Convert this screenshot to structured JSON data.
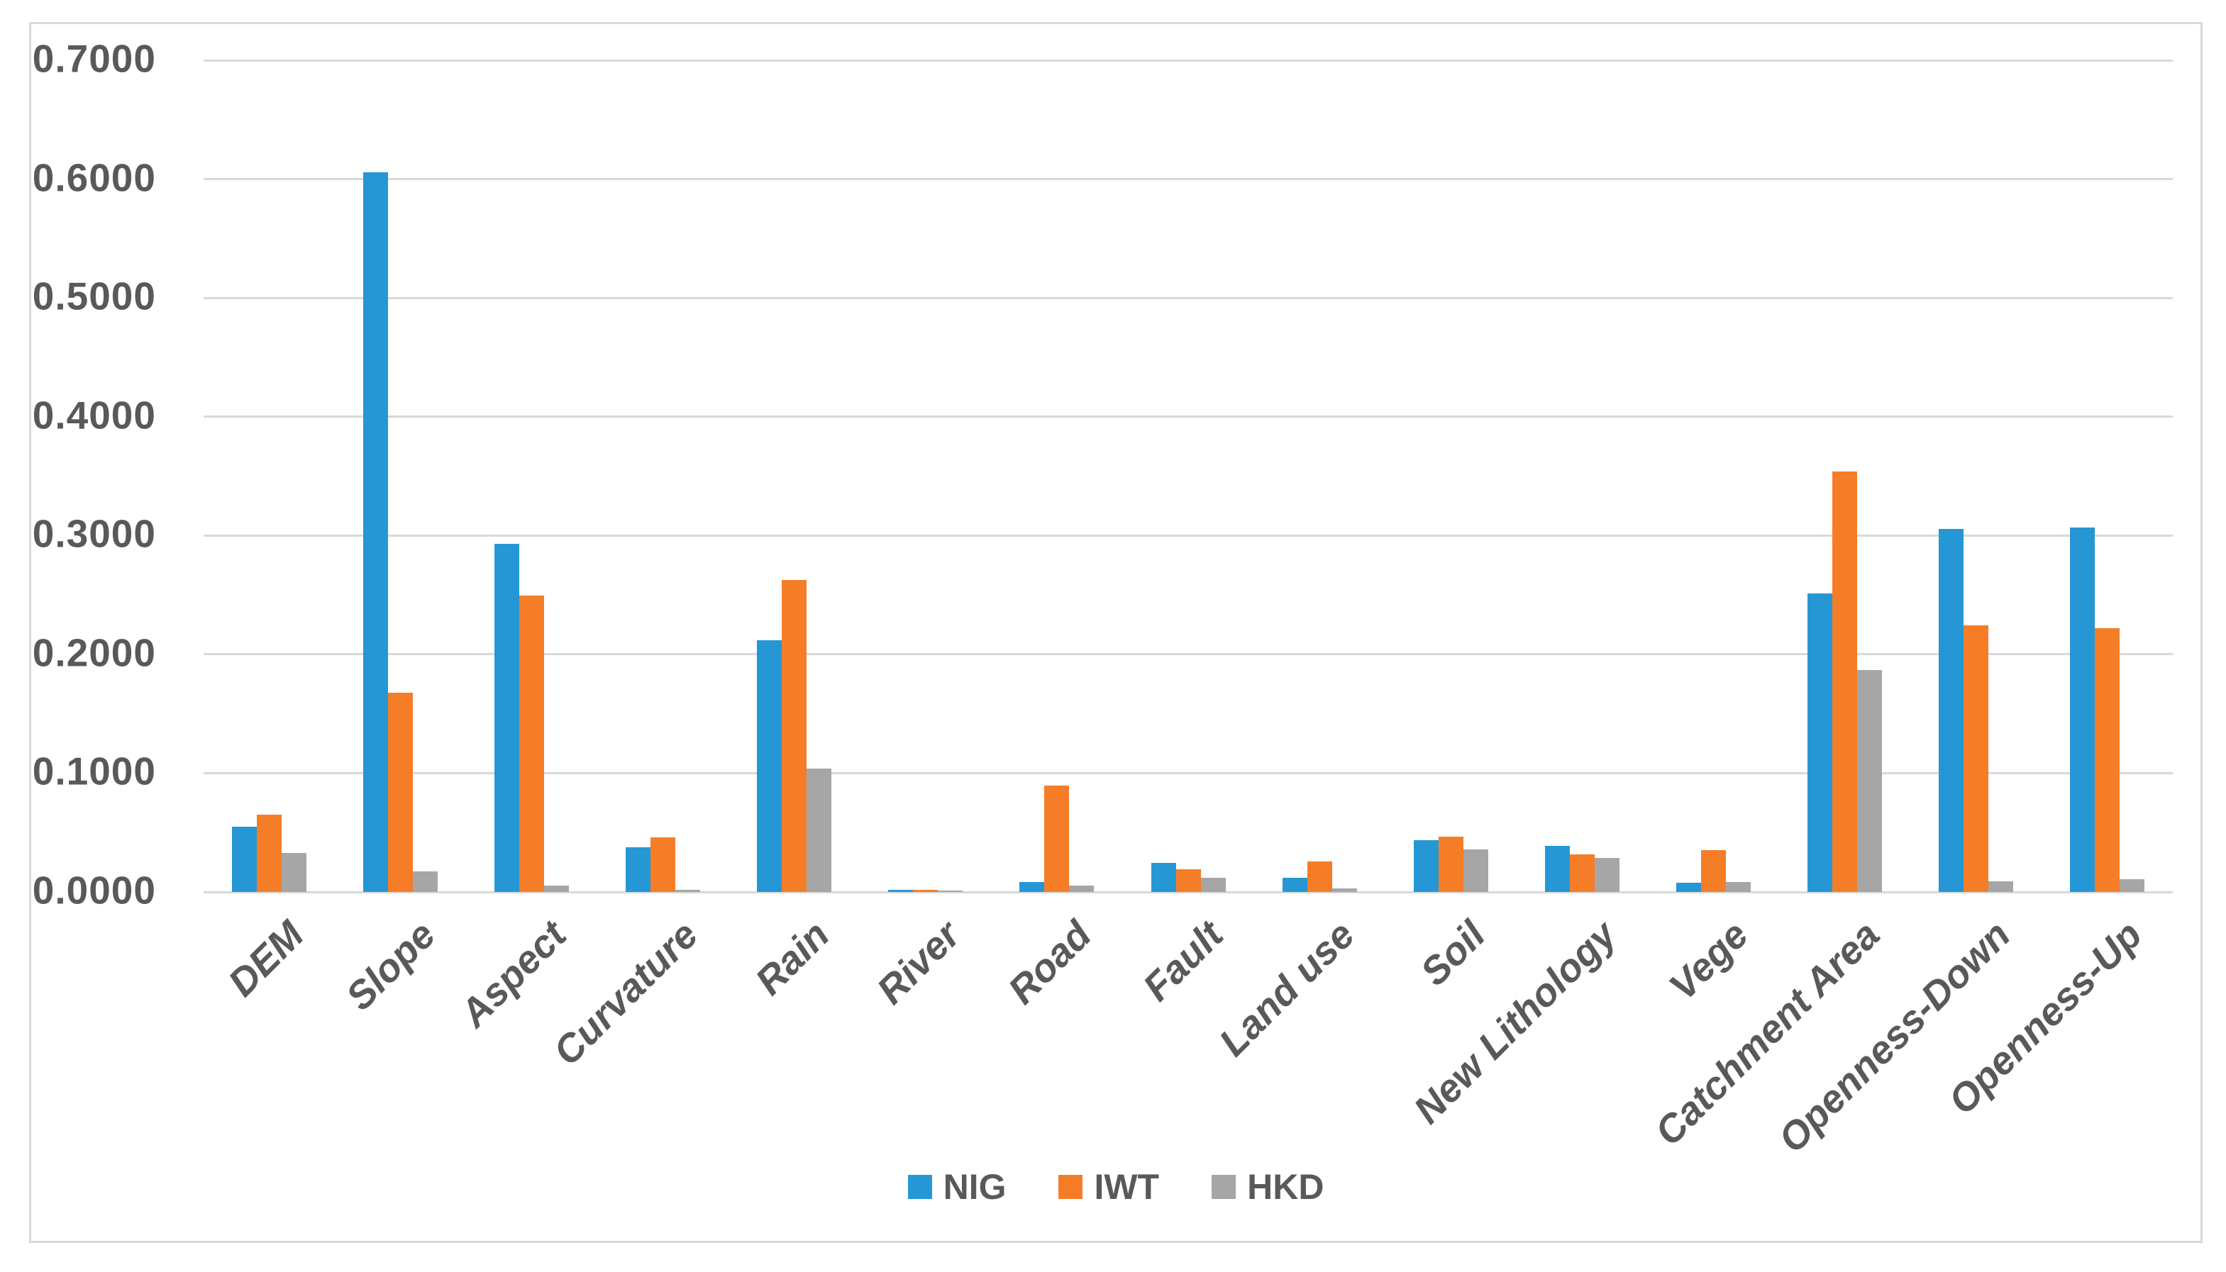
{
  "chart_data": {
    "type": "bar",
    "title": "",
    "xlabel": "",
    "ylabel": "",
    "categories": [
      "DEM",
      "Slope",
      "Aspect",
      "Curvature",
      "Rain",
      "River",
      "Road",
      "Fault",
      "Land use",
      "Soil",
      "New Lithology",
      "Vege",
      "Catchment Area",
      "Openness-Down",
      "Openness-Up"
    ],
    "series": [
      {
        "name": "NIG",
        "color": "#2597d5",
        "values": [
          0.0552,
          0.606,
          0.293,
          0.0378,
          0.212,
          0.002,
          0.0084,
          0.0245,
          0.0121,
          0.0436,
          0.0385,
          0.0078,
          0.2512,
          0.3056,
          0.3068
        ]
      },
      {
        "name": "IWT",
        "color": "#f57d28",
        "values": [
          0.0653,
          0.1677,
          0.2494,
          0.0458,
          0.2626,
          0.002,
          0.0894,
          0.019,
          0.0257,
          0.0463,
          0.0314,
          0.0352,
          0.3539,
          0.2244,
          0.222
        ]
      },
      {
        "name": "HKD",
        "color": "#a6a6a6",
        "values": [
          0.0331,
          0.0171,
          0.0054,
          0.0016,
          0.104,
          0.0005,
          0.0054,
          0.0119,
          0.003,
          0.0361,
          0.0284,
          0.0084,
          0.1868,
          0.0089,
          0.0107
        ]
      }
    ],
    "ylim": [
      0.0,
      0.7
    ],
    "y_tick_step": 0.1,
    "y_ticks": [
      "0.0000",
      "0.1000",
      "0.2000",
      "0.3000",
      "0.4000",
      "0.5000",
      "0.6000",
      "0.7000"
    ],
    "grid": true,
    "legend_position": "bottom",
    "colors": {
      "gridline": "#d9d9d9",
      "chart_border": "#d9d9d9",
      "text": "#595959",
      "background": "#ffffff"
    }
  }
}
